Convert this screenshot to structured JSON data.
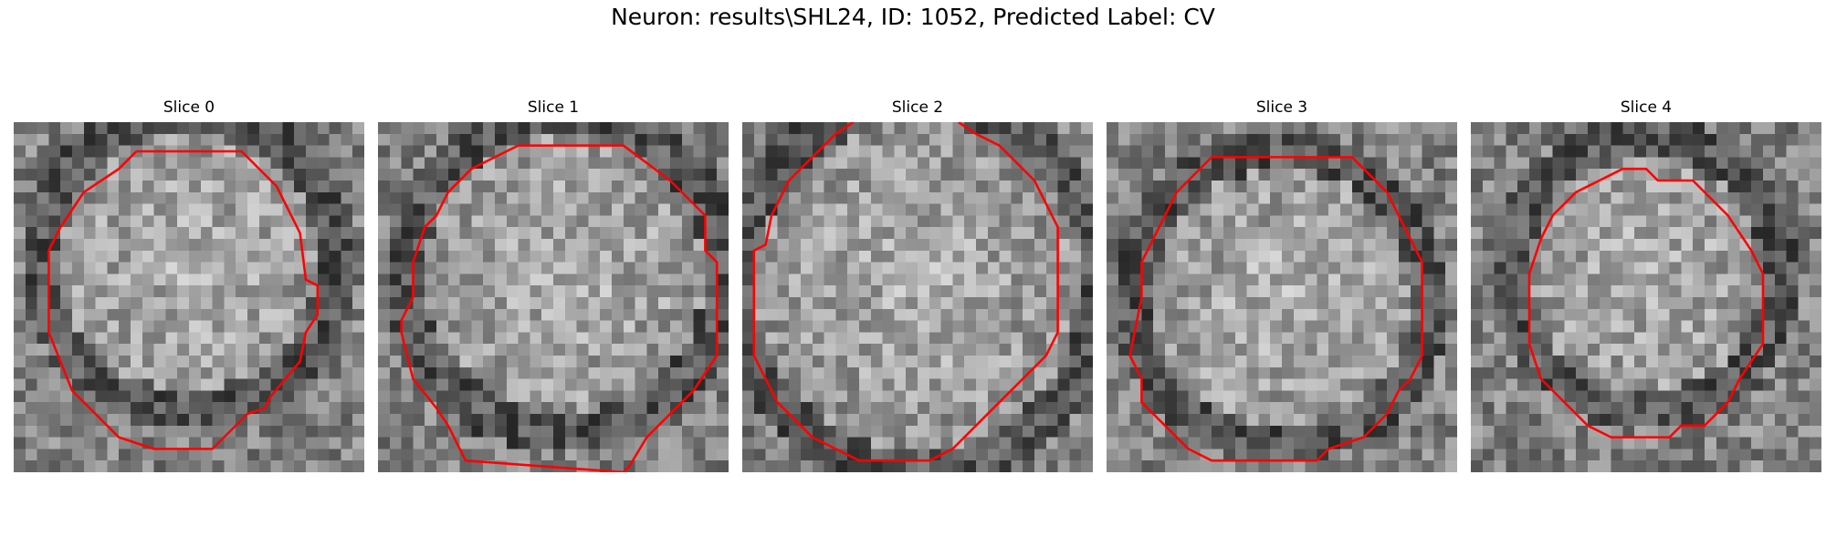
{
  "figure": {
    "title": "Neuron: results\\SHL24, ID: 1052, Predicted Label: CV",
    "grid_size": 30,
    "contour_color": "#ff0000",
    "colormap": "gray",
    "panels": [
      {
        "title": "Slice 0",
        "seed": 11,
        "bright_center": [
          15,
          12
        ],
        "bright_radius": 11,
        "contour": [
          [
            10.5,
            2.5
          ],
          [
            12.5,
            2.5
          ],
          [
            19.5,
            2.5
          ],
          [
            22.5,
            5.5
          ],
          [
            24.5,
            9.5
          ],
          [
            25,
            13.5
          ],
          [
            26,
            14
          ],
          [
            26,
            16.5
          ],
          [
            25,
            18
          ],
          [
            24.5,
            20.5
          ],
          [
            22,
            23.5
          ],
          [
            21.5,
            24.5
          ],
          [
            20,
            25
          ],
          [
            17.5,
            27.5
          ],
          [
            17,
            28
          ],
          [
            12,
            28
          ],
          [
            9,
            27
          ],
          [
            5,
            23
          ],
          [
            4,
            20.5
          ],
          [
            3,
            18
          ],
          [
            3,
            17
          ],
          [
            3,
            11
          ],
          [
            4,
            9
          ],
          [
            5,
            7.5
          ],
          [
            6,
            6
          ],
          [
            9,
            4
          ],
          [
            10.5,
            2.5
          ]
        ]
      },
      {
        "title": "Slice 1",
        "seed": 23,
        "bright_center": [
          16,
          13
        ],
        "bright_radius": 12,
        "contour": [
          [
            12,
            2
          ],
          [
            21,
            2
          ],
          [
            23,
            3.5
          ],
          [
            25,
            5
          ],
          [
            28,
            8
          ],
          [
            28,
            11
          ],
          [
            29,
            12
          ],
          [
            29,
            20
          ],
          [
            27,
            23
          ],
          [
            25,
            25
          ],
          [
            23,
            27
          ],
          [
            21.5,
            29.5
          ],
          [
            21,
            30
          ],
          [
            7.5,
            29
          ],
          [
            6,
            26
          ],
          [
            5,
            24.5
          ],
          [
            3,
            22
          ],
          [
            2,
            18
          ],
          [
            2,
            17
          ],
          [
            3,
            15
          ],
          [
            3,
            12
          ],
          [
            4,
            9
          ],
          [
            5,
            8
          ],
          [
            6,
            6
          ],
          [
            8,
            4
          ],
          [
            10,
            3
          ],
          [
            12,
            2
          ]
        ]
      },
      {
        "title": "Slice 2",
        "seed": 37,
        "bright_center": [
          15,
          14
        ],
        "bright_radius": 14,
        "contour": [
          [
            9.5,
            0
          ],
          [
            8,
            1
          ],
          [
            6,
            3
          ],
          [
            4,
            5
          ],
          [
            3,
            7
          ],
          [
            2.5,
            8
          ],
          [
            2,
            10.5
          ],
          [
            1,
            11
          ],
          [
            1,
            20
          ],
          [
            2,
            22
          ],
          [
            3,
            24
          ],
          [
            4,
            25
          ],
          [
            5,
            26
          ],
          [
            6,
            27
          ],
          [
            8,
            28
          ],
          [
            10,
            29
          ],
          [
            16,
            29
          ],
          [
            18,
            28
          ],
          [
            19,
            27
          ],
          [
            22,
            24
          ],
          [
            24,
            22
          ],
          [
            26,
            20
          ],
          [
            27,
            18
          ],
          [
            27,
            9
          ],
          [
            26,
            7
          ],
          [
            25,
            5
          ],
          [
            24,
            4
          ],
          [
            22,
            2
          ],
          [
            20,
            1
          ],
          [
            18.5,
            0
          ]
        ]
      },
      {
        "title": "Slice 3",
        "seed": 51,
        "bright_center": [
          15,
          15
        ],
        "bright_radius": 11,
        "contour": [
          [
            9,
            3
          ],
          [
            21,
            3
          ],
          [
            23,
            5
          ],
          [
            24,
            6
          ],
          [
            25,
            8
          ],
          [
            26,
            10
          ],
          [
            27,
            12
          ],
          [
            27,
            20
          ],
          [
            26,
            22
          ],
          [
            25,
            23
          ],
          [
            24,
            25
          ],
          [
            23,
            26
          ],
          [
            22,
            27
          ],
          [
            19,
            28
          ],
          [
            18,
            29
          ],
          [
            9,
            29
          ],
          [
            7,
            28
          ],
          [
            6,
            27
          ],
          [
            5,
            26
          ],
          [
            3,
            24
          ],
          [
            3,
            22
          ],
          [
            2,
            20
          ],
          [
            3,
            15
          ],
          [
            3,
            12
          ],
          [
            4,
            10
          ],
          [
            5,
            8
          ],
          [
            6,
            6
          ],
          [
            7,
            5
          ],
          [
            9,
            3
          ]
        ]
      },
      {
        "title": "Slice 4",
        "seed": 67,
        "bright_center": [
          15,
          13
        ],
        "bright_radius": 10,
        "contour": [
          [
            11,
            5
          ],
          [
            13,
            4
          ],
          [
            15,
            4
          ],
          [
            16,
            5
          ],
          [
            19,
            5
          ],
          [
            22,
            8
          ],
          [
            24,
            11
          ],
          [
            25,
            13
          ],
          [
            25,
            19
          ],
          [
            23,
            22
          ],
          [
            22,
            24
          ],
          [
            20,
            26
          ],
          [
            18,
            26
          ],
          [
            17,
            27
          ],
          [
            12,
            27
          ],
          [
            10,
            26
          ],
          [
            8,
            24
          ],
          [
            6,
            22
          ],
          [
            5,
            19
          ],
          [
            5,
            13
          ],
          [
            6,
            10
          ],
          [
            7,
            8
          ],
          [
            9,
            6
          ],
          [
            11,
            5
          ]
        ]
      }
    ]
  }
}
